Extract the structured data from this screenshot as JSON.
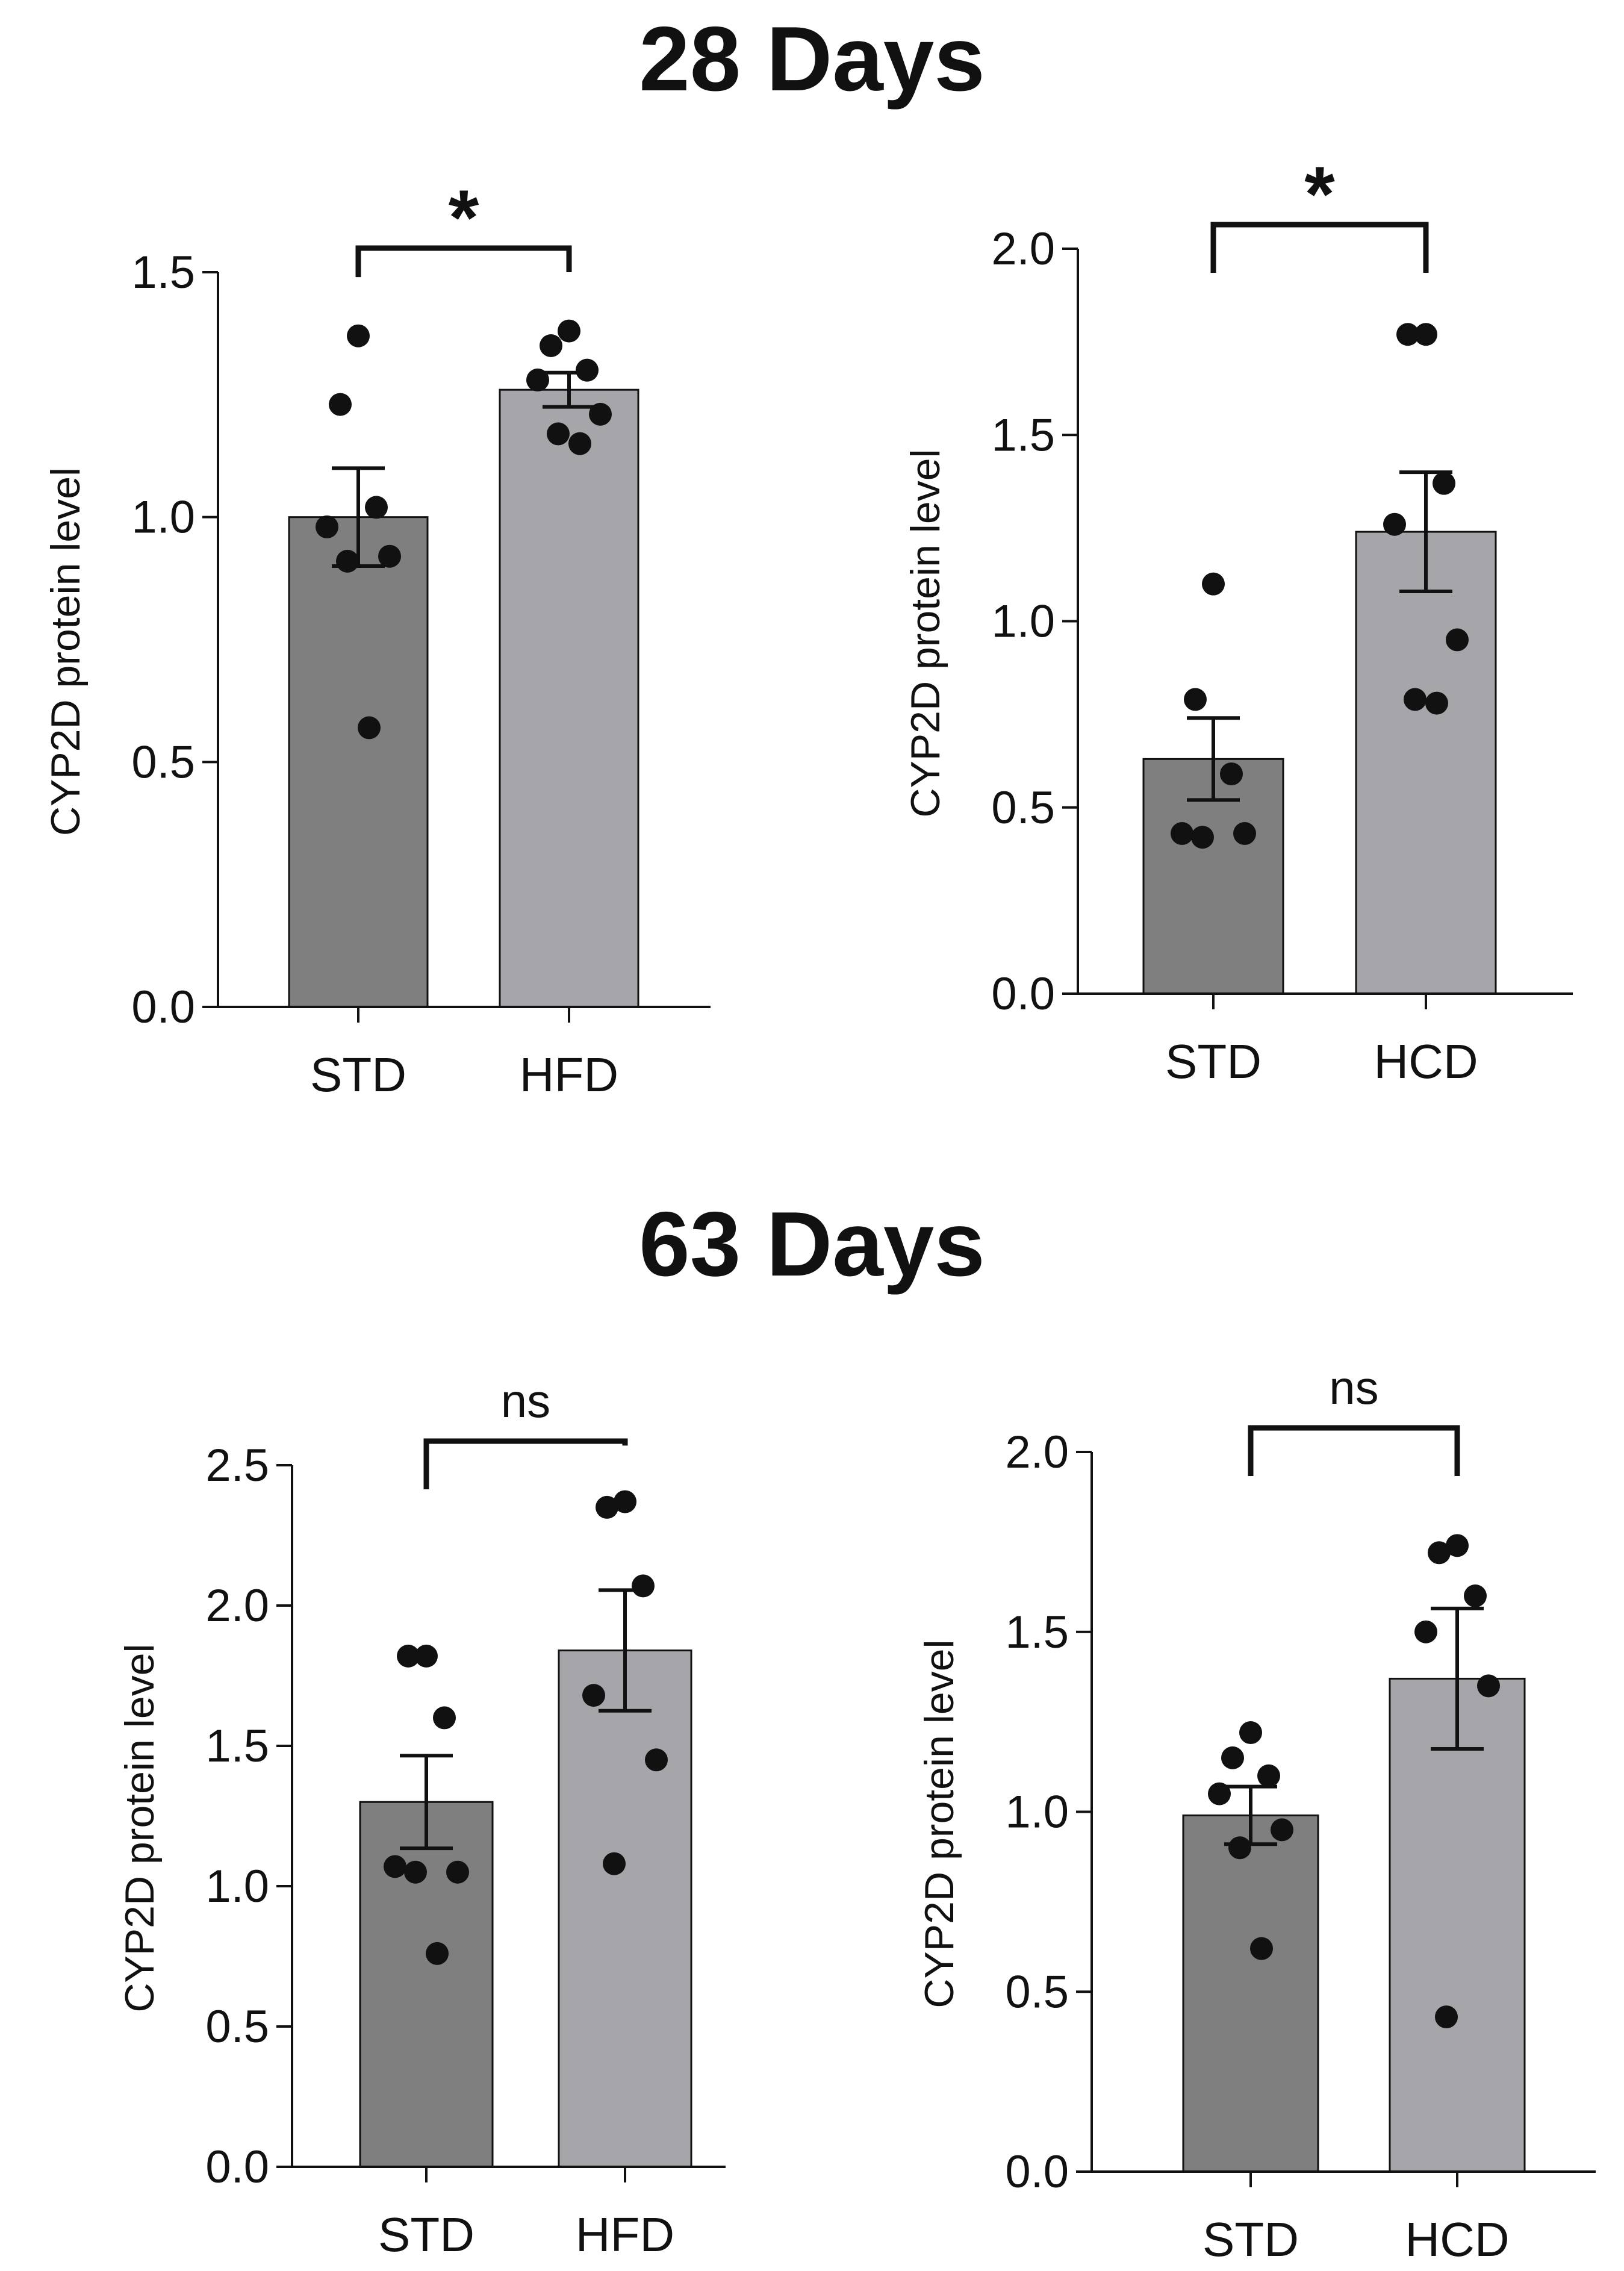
{
  "figure": {
    "sections": [
      "28 Days",
      "63 Days"
    ]
  },
  "colors": {
    "std_bar": "#7f7f7f",
    "treat_bar": "#a6a6aa",
    "ink": "#111111"
  },
  "chart_data": [
    {
      "type": "bar",
      "section": "28 Days",
      "title": "",
      "xlabel": "",
      "ylabel": "CYP2D protein level",
      "ylim": [
        0,
        1.5
      ],
      "yticks": [
        0.0,
        0.5,
        1.0,
        1.5
      ],
      "ytick_labels": [
        "0.0",
        "0.5",
        "1.0",
        "1.5"
      ],
      "categories": [
        "STD",
        "HFD"
      ],
      "values": [
        1.0,
        1.26
      ],
      "sem": [
        0.1,
        0.035
      ],
      "points": [
        [
          1.37,
          1.23,
          1.02,
          0.98,
          0.92,
          0.91,
          0.57
        ],
        [
          1.38,
          1.35,
          1.3,
          1.28,
          1.21,
          1.17,
          1.15
        ]
      ],
      "significance": "*"
    },
    {
      "type": "bar",
      "section": "28 Days",
      "title": "",
      "xlabel": "",
      "ylabel": "CYP2D protein level",
      "ylim": [
        0,
        2.0
      ],
      "yticks": [
        0.0,
        0.5,
        1.0,
        1.5,
        2.0
      ],
      "ytick_labels": [
        "0.0",
        "0.5",
        "1.0",
        "1.5",
        "2.0"
      ],
      "categories": [
        "STD",
        "HCD"
      ],
      "values": [
        0.63,
        1.24
      ],
      "sem": [
        0.11,
        0.16
      ],
      "points": [
        [
          1.1,
          0.79,
          0.59,
          0.43,
          0.43,
          0.42
        ],
        [
          1.77,
          1.77,
          1.37,
          1.26,
          0.95,
          0.79,
          0.78
        ]
      ],
      "significance": "*"
    },
    {
      "type": "bar",
      "section": "63 Days",
      "title": "",
      "xlabel": "",
      "ylabel": "CYP2D protein level",
      "ylim": [
        0,
        2.5
      ],
      "yticks": [
        0.0,
        0.5,
        1.0,
        1.5,
        2.0,
        2.5
      ],
      "ytick_labels": [
        "0.0",
        "0.5",
        "1.0",
        "1.5",
        "2.0",
        "2.5"
      ],
      "categories": [
        "STD",
        "HFD"
      ],
      "values": [
        1.3,
        1.84
      ],
      "sem": [
        0.165,
        0.215
      ],
      "points": [
        [
          1.82,
          1.82,
          1.6,
          1.07,
          1.05,
          1.05,
          0.76
        ],
        [
          2.37,
          2.35,
          2.07,
          1.68,
          1.45,
          1.08
        ]
      ],
      "significance": "ns"
    },
    {
      "type": "bar",
      "section": "63 Days",
      "title": "",
      "xlabel": "",
      "ylabel": "CYP2D protein level",
      "ylim": [
        0,
        2.0
      ],
      "yticks": [
        0.0,
        0.5,
        1.0,
        1.5,
        2.0
      ],
      "ytick_labels": [
        "0.0",
        "0.5",
        "1.0",
        "1.5",
        "2.0"
      ],
      "categories": [
        "STD",
        "HCD"
      ],
      "values": [
        0.99,
        1.37
      ],
      "sem": [
        0.08,
        0.195
      ],
      "points": [
        [
          1.22,
          1.15,
          1.1,
          1.05,
          0.95,
          0.9,
          0.62
        ],
        [
          1.74,
          1.72,
          1.6,
          1.5,
          1.35,
          0.43
        ]
      ],
      "significance": "ns"
    }
  ]
}
